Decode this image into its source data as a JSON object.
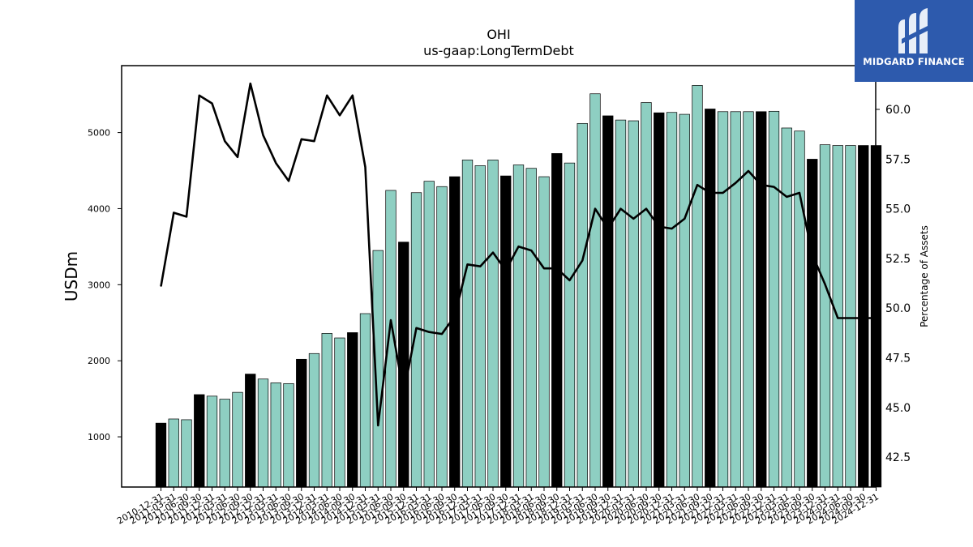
{
  "chart_data": {
    "type": "bar",
    "title": "OHI",
    "subtitle": "us-gaap:LongTermDebt",
    "ylabel": "USDm",
    "y2label": "Percentage of Assets",
    "ylim": [
      340,
      5880
    ],
    "y2lim": [
      41.0,
      62.2
    ],
    "yticks": [
      1000,
      2000,
      3000,
      4000,
      5000
    ],
    "y2ticks": [
      42.5,
      45.0,
      47.5,
      50.0,
      52.5,
      55.0,
      57.5,
      60.0
    ],
    "colors": {
      "bar_regular": "#8ecfc2",
      "bar_year_end": "#000000",
      "line": "#000000"
    },
    "categories": [
      "2010-12-31",
      "2011-03-31",
      "2011-06-30",
      "2011-09-30",
      "2011-12-31",
      "2012-03-31",
      "2012-06-30",
      "2012-09-30",
      "2012-12-31",
      "2013-03-31",
      "2013-06-30",
      "2013-09-30",
      "2013-12-31",
      "2014-03-31",
      "2014-06-30",
      "2014-09-30",
      "2014-12-31",
      "2015-03-31",
      "2015-06-30",
      "2015-09-30",
      "2015-12-31",
      "2016-03-31",
      "2016-06-30",
      "2016-09-30",
      "2016-12-31",
      "2017-03-31",
      "2017-06-30",
      "2017-09-30",
      "2017-12-31",
      "2018-03-31",
      "2018-06-30",
      "2018-09-30",
      "2018-12-31",
      "2019-03-31",
      "2019-06-30",
      "2019-09-30",
      "2019-12-31",
      "2020-03-31",
      "2020-06-30",
      "2020-09-30",
      "2020-12-31",
      "2021-03-31",
      "2021-06-30",
      "2021-09-30",
      "2021-12-31",
      "2022-03-31",
      "2022-06-30",
      "2022-09-30",
      "2022-12-31",
      "2023-03-31",
      "2023-06-30",
      "2023-09-30",
      "2023-12-31",
      "2024-03-31",
      "2024-06-30",
      "2024-09-30",
      "2024-12-31"
    ],
    "tick_labels": [
      "2010-12-31",
      "2011-03-31",
      "2011-06-30",
      "2011-09-30",
      "2011-12-31",
      "2012-03-31",
      "2012-06-30",
      "2012-09-30",
      "2012-12-31",
      "2013-03-31",
      "2013-06-30",
      "2013-09-30",
      "2013-12-31",
      "2014-03-31",
      "2014-06-30",
      "2014-09-30",
      "2014-12-31",
      "2015-03-31",
      "2015-06-30",
      "2015-09-30",
      "2015-12-31",
      "2016-03-31",
      "2016-06-30",
      "2016-09-30",
      "2016-12-31",
      "2017-03-31",
      "2017-06-30",
      "2017-09-30",
      "2017-12-31",
      "2018-03-31",
      "2018-06-30",
      "2018-09-30",
      "2018-12-31",
      "2019-03-31",
      "2019-06-30",
      "2019-09-30",
      "2019-12-31",
      "2020-03-31",
      "2020-06-30",
      "2020-09-30",
      "2020-12-31",
      "2021-03-31",
      "2021-06-30",
      "2021-09-30",
      "2021-12-31",
      "2022-03-31",
      "2022-06-30",
      "2022-09-30",
      "2022-12-31",
      "2023-03-31",
      "2023-06-30",
      "2023-09-30",
      "2023-12-31",
      "2024-03-31",
      "2024-06-30",
      "2024-09-30",
      "2024-12-31"
    ],
    "series": [
      {
        "type": "bar",
        "axis": "left",
        "values": [
          1180,
          1235,
          1225,
          1555,
          1535,
          1495,
          1585,
          1825,
          1760,
          1710,
          1700,
          2020,
          2095,
          2360,
          2300,
          2370,
          2620,
          3450,
          4240,
          3560,
          4210,
          4360,
          4290,
          4420,
          4640,
          4565,
          4640,
          4430,
          4575,
          4530,
          4420,
          4725,
          4600,
          5120,
          5510,
          5220,
          5165,
          5155,
          5395,
          5260,
          5265,
          5240,
          5620,
          5310,
          5275,
          5275,
          5275,
          5275,
          5280,
          5060,
          5020,
          4650,
          4840,
          4830,
          4830,
          4830,
          4830
        ],
        "year_end": [
          true,
          false,
          false,
          true,
          false,
          false,
          false,
          true,
          false,
          false,
          false,
          true,
          false,
          false,
          false,
          true,
          false,
          false,
          false,
          true,
          false,
          false,
          false,
          true,
          false,
          false,
          false,
          true,
          false,
          false,
          false,
          true,
          false,
          false,
          false,
          true,
          false,
          false,
          false,
          true,
          false,
          false,
          false,
          true,
          false,
          false,
          false,
          true,
          false,
          false,
          false,
          true,
          false,
          false,
          false,
          true,
          true
        ]
      },
      {
        "type": "line",
        "axis": "right",
        "values": [
          51.1,
          54.8,
          54.6,
          60.7,
          60.3,
          58.4,
          57.6,
          61.3,
          58.7,
          57.3,
          56.4,
          58.5,
          58.4,
          60.7,
          59.7,
          60.7,
          57.1,
          44.1,
          49.4,
          45.7,
          49.0,
          48.8,
          48.7,
          49.6,
          52.2,
          52.1,
          52.8,
          51.9,
          53.1,
          52.9,
          52.0,
          52.0,
          51.4,
          52.4,
          55.0,
          54.0,
          55.0,
          54.5,
          55.0,
          54.1,
          54.0,
          54.5,
          56.2,
          55.8,
          55.8,
          56.3,
          56.9,
          56.2,
          56.1,
          55.6,
          55.8,
          52.7,
          51.2,
          49.5,
          49.5,
          49.5,
          49.5
        ]
      }
    ]
  },
  "logo": {
    "text": "MIDGARD FINANCE"
  }
}
